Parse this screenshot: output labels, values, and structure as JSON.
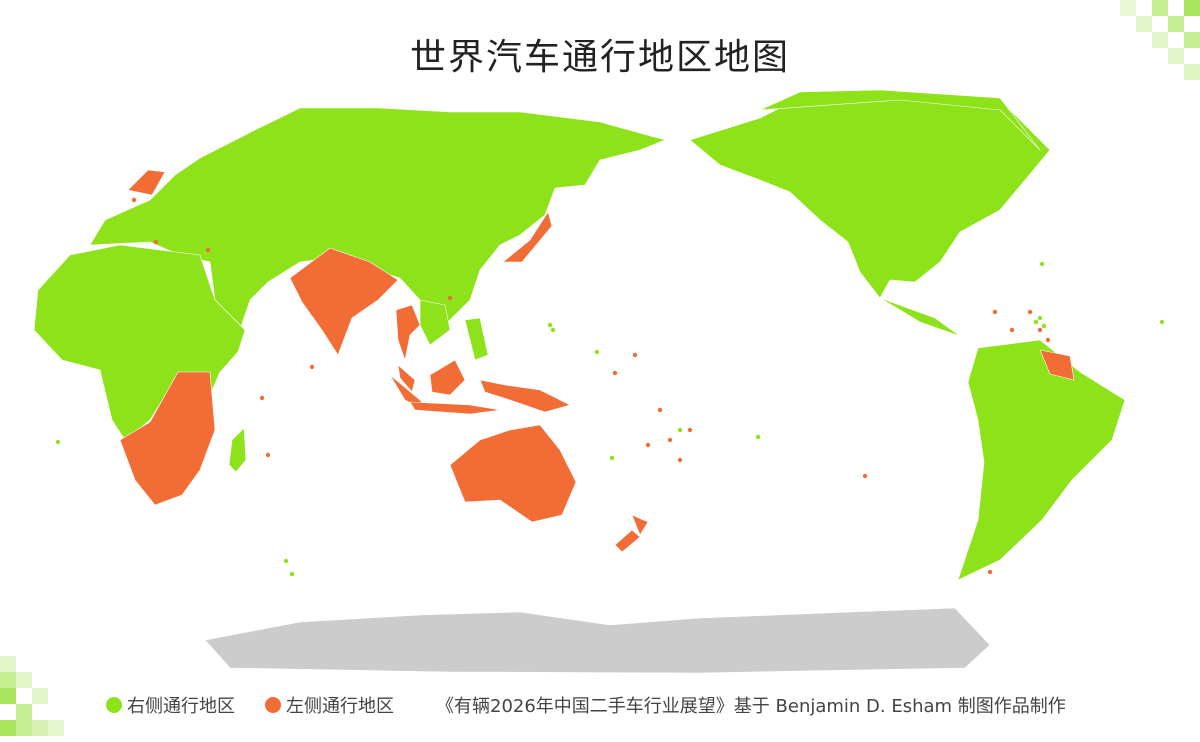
{
  "title": "世界汽车通行地区地图",
  "legend": [
    {
      "label": "右侧通行地区",
      "color": "#8ee21a"
    },
    {
      "label": "左侧通行地区",
      "color": "#f26c35"
    }
  ],
  "credit": "《有辆2026年中国二手车行业展望》基于 Benjamin D. Esham 制图作品制作",
  "colors": {
    "right_hand": "#8ee21a",
    "left_hand": "#f26c35",
    "antarctica": "#cccccc",
    "decoration": "#c9ef9c"
  }
}
